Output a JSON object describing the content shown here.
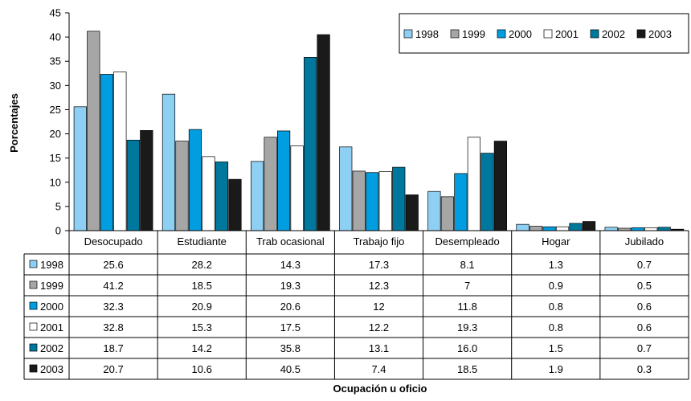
{
  "chart_data": {
    "type": "bar",
    "categories": [
      "Desocupado",
      "Estudiante",
      "Trab ocasional",
      "Trabajo fijo",
      "Desempleado",
      "Hogar",
      "Jubilado"
    ],
    "series": [
      {
        "name": "1998",
        "color": "#8dd0f3",
        "values": [
          25.6,
          28.2,
          14.3,
          17.3,
          8.1,
          1.3,
          0.7
        ]
      },
      {
        "name": "1999",
        "color": "#a6a6a6",
        "values": [
          41.2,
          18.5,
          19.3,
          12.3,
          7,
          0.9,
          0.5
        ]
      },
      {
        "name": "2000",
        "color": "#009ee0",
        "values": [
          32.3,
          20.9,
          20.6,
          12,
          11.8,
          0.8,
          0.6
        ]
      },
      {
        "name": "2001",
        "color": "#ffffff",
        "values": [
          32.8,
          15.3,
          17.5,
          12.2,
          19.3,
          0.8,
          0.6
        ]
      },
      {
        "name": "2002",
        "color": "#00789e",
        "values": [
          18.7,
          14.2,
          35.8,
          13.1,
          16.0,
          1.5,
          0.7
        ]
      },
      {
        "name": "2003",
        "color": "#1a1a1a",
        "values": [
          20.7,
          10.6,
          40.5,
          7.4,
          18.5,
          1.9,
          0.3
        ]
      }
    ],
    "table_values": [
      [
        "25.6",
        "28.2",
        "14.3",
        "17.3",
        "8.1",
        "1.3",
        "0.7"
      ],
      [
        "41.2",
        "18.5",
        "19.3",
        "12.3",
        "7",
        "0.9",
        "0.5"
      ],
      [
        "32.3",
        "20.9",
        "20.6",
        "12",
        "11.8",
        "0.8",
        "0.6"
      ],
      [
        "32.8",
        "15.3",
        "17.5",
        "12.2",
        "19.3",
        "0.8",
        "0.6"
      ],
      [
        "18.7",
        "14.2",
        "35.8",
        "13.1",
        "16.0",
        "1.5",
        "0.7"
      ],
      [
        "20.7",
        "10.6",
        "40.5",
        "7.4",
        "18.5",
        "1.9",
        "0.3"
      ]
    ],
    "ylabel": "Porcentajes",
    "xlabel": "Ocupación u oficio",
    "ylim": [
      0,
      45
    ],
    "yticks": [
      0,
      5,
      10,
      15,
      20,
      25,
      30,
      35,
      40,
      45
    ],
    "grid": false,
    "legend": "top-right",
    "data_table": true
  }
}
